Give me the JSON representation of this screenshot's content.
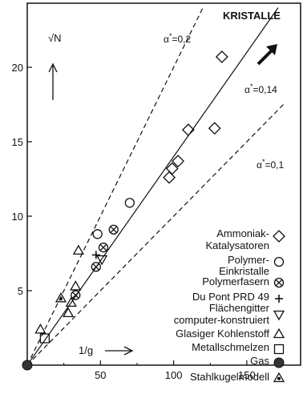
{
  "chart_data": {
    "type": "scatter",
    "title": "KRISTALLE",
    "ylabel": "√N",
    "xlabel": "1/g",
    "xlim": [
      0,
      175
    ],
    "ylim": [
      0,
      24
    ],
    "x_ticks": [
      50,
      100,
      150
    ],
    "y_ticks": [
      5,
      10,
      15,
      20
    ],
    "grid": false,
    "lines": [
      {
        "label": "α* = 0,2",
        "slope_label": "0,2",
        "points": [
          [
            0,
            0
          ],
          [
            120,
            24
          ]
        ],
        "style": "dashed"
      },
      {
        "label": "α* = 0,14",
        "slope_label": "0,14",
        "points": [
          [
            0,
            0
          ],
          [
            171.4,
            24
          ]
        ],
        "style": "solid"
      },
      {
        "label": "α* = 0,1",
        "slope_label": "0,1",
        "points": [
          [
            0,
            0
          ],
          [
            175,
            17.5
          ]
        ],
        "style": "dashed"
      }
    ],
    "series": [
      {
        "name": "Ammoniak-\nKatalysatoren",
        "marker": "diamond",
        "points": [
          [
            97,
            12.6
          ],
          [
            99,
            13.2
          ],
          [
            103,
            13.7
          ],
          [
            110,
            15.8
          ],
          [
            128,
            15.9
          ],
          [
            133,
            20.7
          ]
        ]
      },
      {
        "name": "Polymer-\nEinkristalle",
        "marker": "circle",
        "points": [
          [
            48,
            8.8
          ],
          [
            70,
            10.9
          ]
        ]
      },
      {
        "name": "Polymerfasern",
        "marker": "circle-x",
        "points": [
          [
            33,
            4.7
          ],
          [
            47,
            6.6
          ],
          [
            52,
            7.9
          ],
          [
            59,
            9.1
          ]
        ]
      },
      {
        "name": "Du Pont PRD 49",
        "marker": "plus",
        "points": [
          [
            47,
            7.4
          ]
        ]
      },
      {
        "name": "Flächengitter\ncomputer-konstruiert",
        "marker": "triangle-down",
        "points": [
          [
            51,
            7.1
          ]
        ]
      },
      {
        "name": "Glasiger Kohlenstoff",
        "marker": "triangle-up",
        "points": [
          [
            9,
            2.4
          ],
          [
            28,
            3.5
          ],
          [
            30,
            4.2
          ],
          [
            33,
            5.3
          ],
          [
            35,
            7.7
          ]
        ]
      },
      {
        "name": "Metallschmelzen",
        "marker": "square",
        "points": [
          [
            12,
            1.8
          ]
        ]
      },
      {
        "name": "Gas",
        "marker": "filled-circle",
        "points": [
          [
            0,
            0
          ]
        ]
      },
      {
        "name": "Stahlkugelmodell",
        "marker": "triangle-dot",
        "points": [
          [
            23,
            4.5
          ]
        ]
      }
    ]
  },
  "arrows": {
    "vertical_label": "↑",
    "horizontal_label": "→"
  }
}
